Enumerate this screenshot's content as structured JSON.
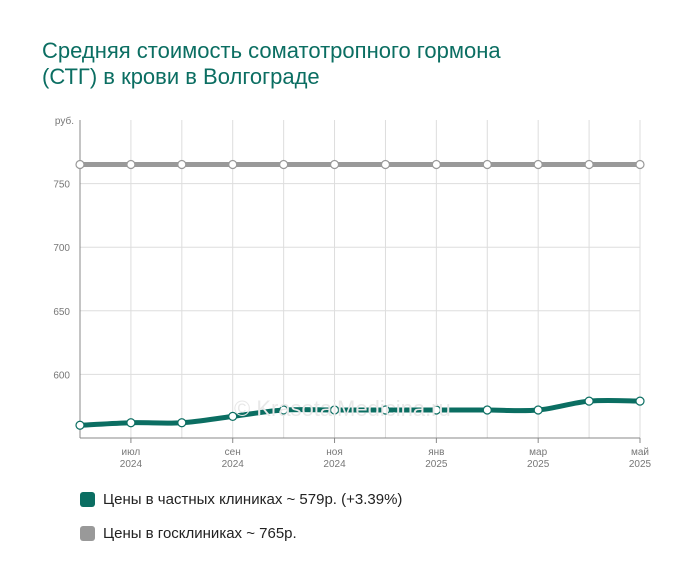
{
  "title_line1": "Средняя стоимость соматотропного гормона",
  "title_line2": "(СТГ) в крови в Волгограде",
  "watermark": "© KrasotaiMedicina.ru",
  "colors": {
    "title": "#0b6e62",
    "private": "#0b6e62",
    "public": "#999999",
    "grid": "#dddddd",
    "axis": "#888888"
  },
  "chart_data": {
    "type": "line",
    "y_unit_label": "руб.",
    "y_ticks": [
      600,
      650,
      700,
      750
    ],
    "ylim": [
      550,
      800
    ],
    "x_tick_labels": [
      {
        "month": "июл",
        "year": "2024",
        "at": 1
      },
      {
        "month": "сен",
        "year": "2024",
        "at": 3
      },
      {
        "month": "ноя",
        "year": "2024",
        "at": 5
      },
      {
        "month": "янв",
        "year": "2025",
        "at": 7
      },
      {
        "month": "мар",
        "year": "2025",
        "at": 9
      },
      {
        "month": "май",
        "year": "2025",
        "at": 11
      }
    ],
    "x": [
      "2024-06",
      "2024-07",
      "2024-08",
      "2024-09",
      "2024-10",
      "2024-11",
      "2024-12",
      "2025-01",
      "2025-02",
      "2025-03",
      "2025-04",
      "2025-05"
    ],
    "grid": true,
    "series": [
      {
        "name": "Цены в частных клиниках ~ 579р. (+3.39%)",
        "color": "#0b6e62",
        "values": [
          560,
          562,
          562,
          567,
          572,
          572,
          572,
          572,
          572,
          572,
          579,
          579
        ]
      },
      {
        "name": "Цены в госклиниках ~ 765р.",
        "color": "#999999",
        "values": [
          765,
          765,
          765,
          765,
          765,
          765,
          765,
          765,
          765,
          765,
          765,
          765
        ]
      }
    ]
  }
}
